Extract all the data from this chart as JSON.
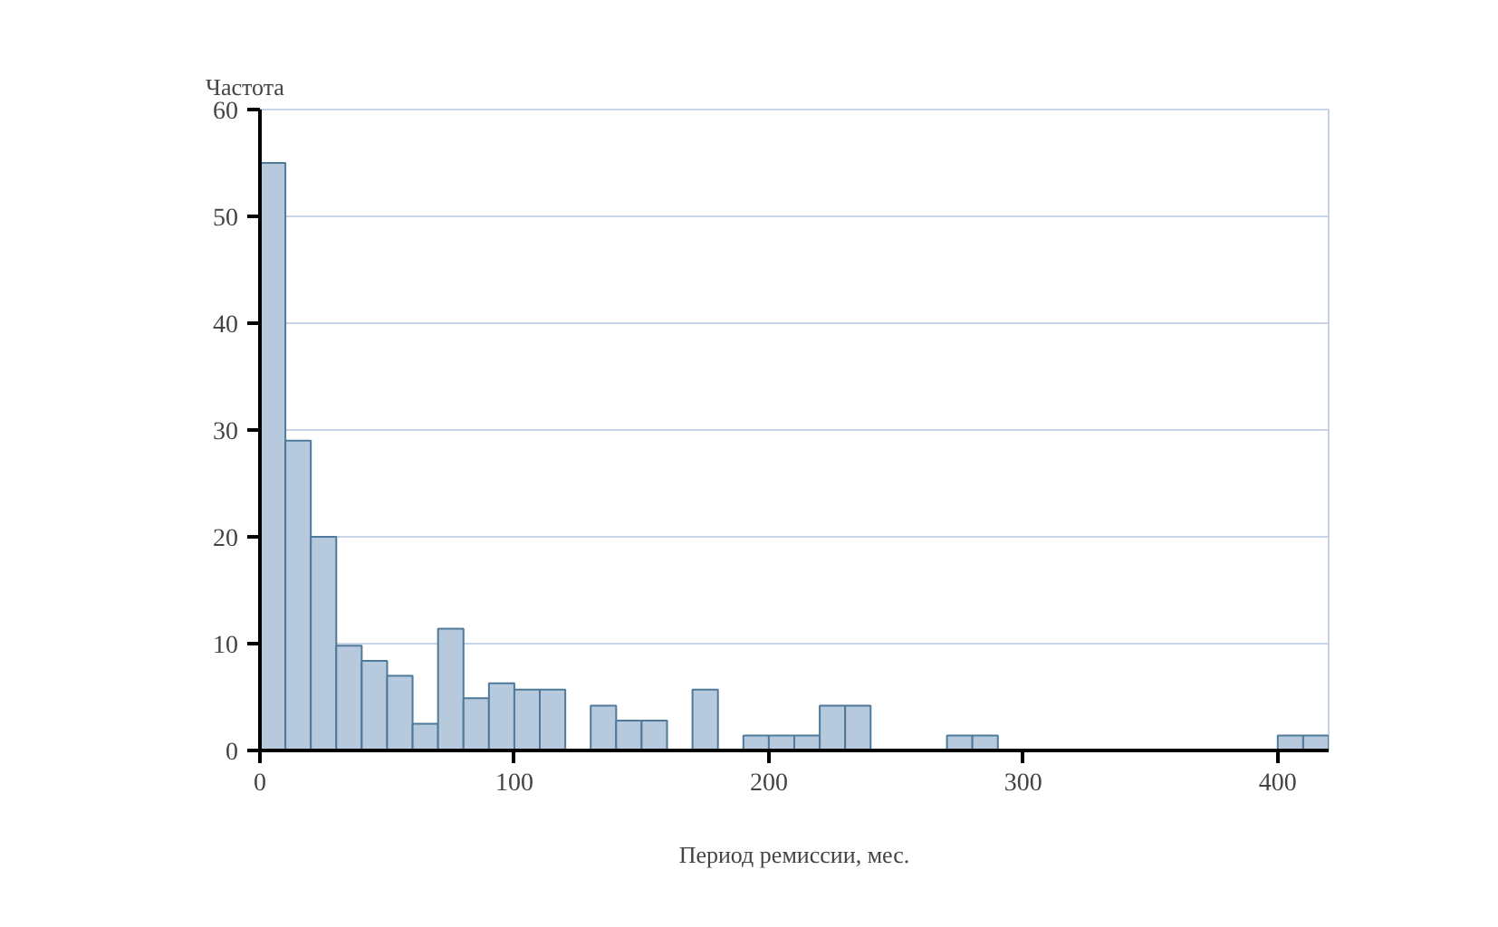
{
  "chart_data": {
    "type": "histogram",
    "ylabel": "Частота",
    "xlabel": "Период ремиссии, мес.",
    "bins": [
      0,
      10,
      20,
      30,
      40,
      50,
      60,
      70,
      80,
      90,
      100,
      110,
      120,
      130,
      140,
      150,
      160,
      170,
      180,
      190,
      200,
      210,
      220,
      230,
      240,
      250,
      260,
      270,
      280,
      290,
      300,
      310,
      320,
      330,
      340,
      350,
      360,
      370,
      380,
      390,
      400,
      410,
      420
    ],
    "values": [
      55,
      29,
      20,
      9.8,
      8.4,
      7,
      2.5,
      11.4,
      4.9,
      6.3,
      5.7,
      5.7,
      0,
      4.2,
      2.8,
      2.8,
      0,
      5.7,
      0,
      1.4,
      1.4,
      1.4,
      4.2,
      4.2,
      0,
      0,
      0,
      1.4,
      1.4,
      0,
      0,
      0,
      0,
      0,
      0,
      0,
      0,
      0,
      0,
      0,
      1.4,
      1.4
    ],
    "color": "#b7c9dd",
    "xlim": [
      0,
      420
    ],
    "ylim": [
      0,
      60
    ],
    "xticks": [
      0,
      100,
      200,
      300,
      400
    ],
    "yticks": [
      0,
      10,
      20,
      30,
      40,
      50,
      60
    ],
    "grid": "y"
  }
}
